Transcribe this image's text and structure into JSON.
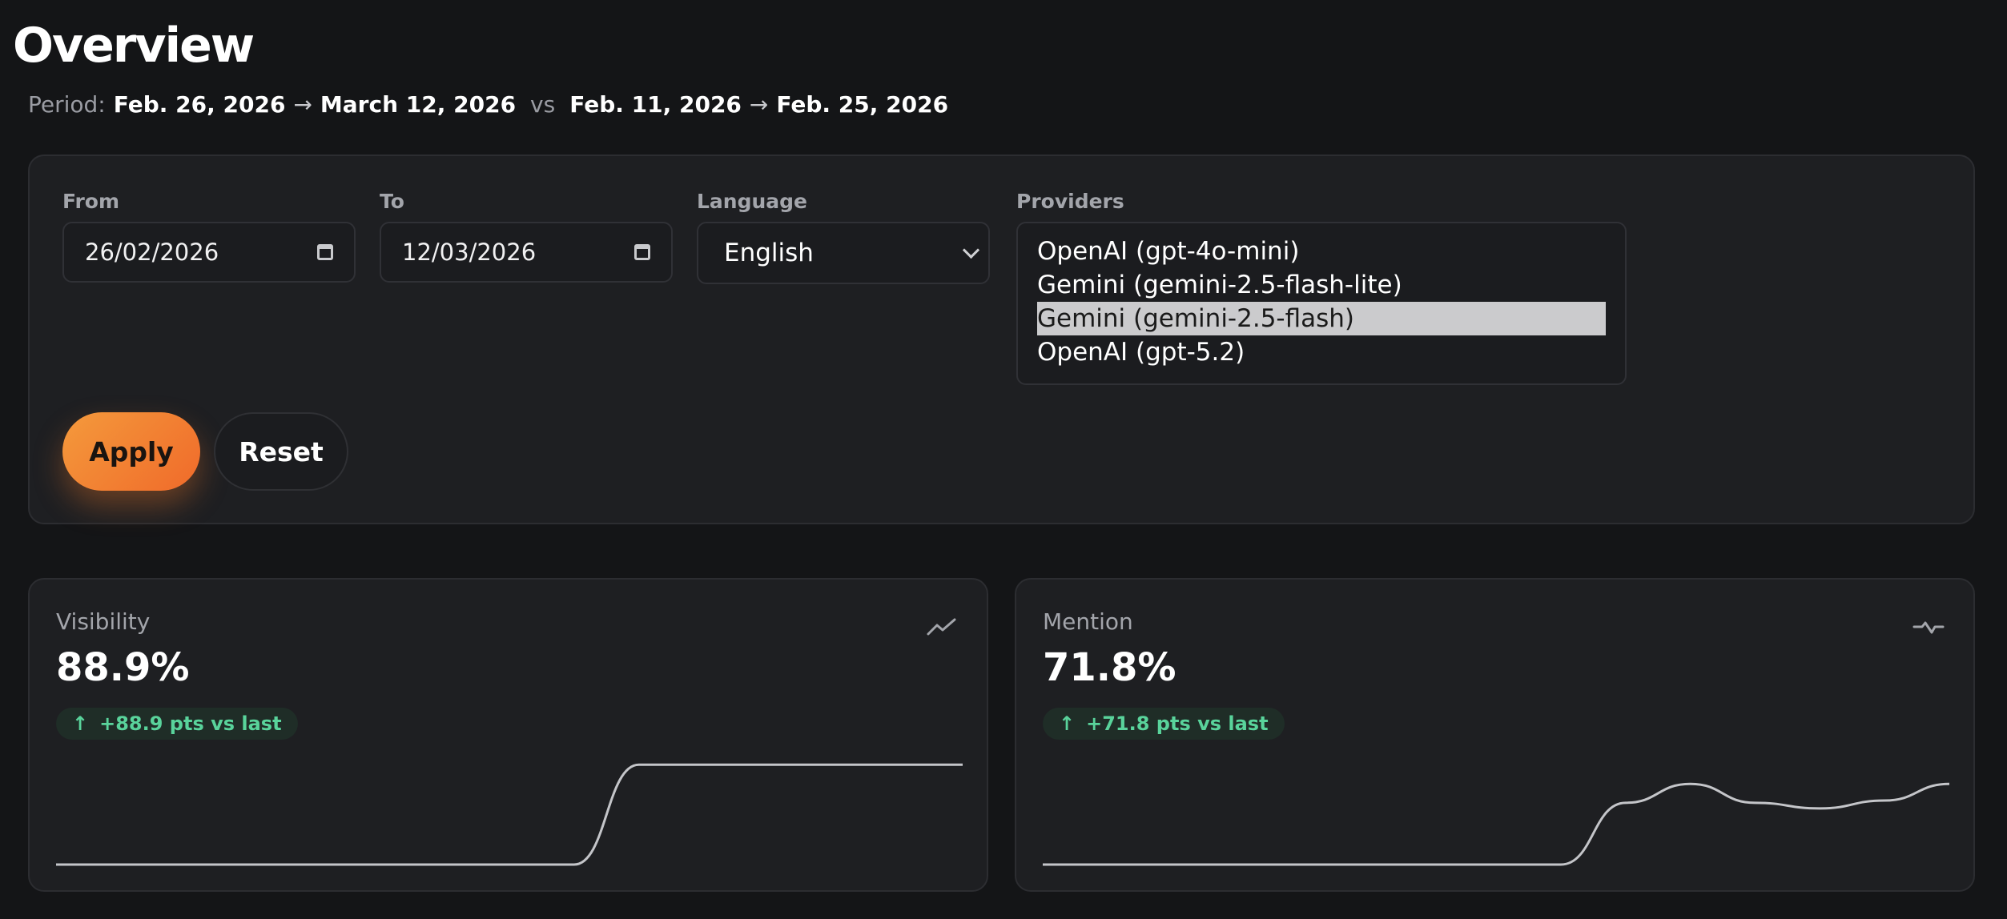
{
  "page": {
    "title": "Overview"
  },
  "period": {
    "label": "Period:",
    "current_start": "Feb. 26, 2026",
    "current_end": "March 12, 2026",
    "arrow": "→",
    "vs": "vs",
    "previous_start": "Feb. 11, 2026",
    "previous_end": "Feb. 25, 2026"
  },
  "filters": {
    "from_label": "From",
    "from_value": "26/02/2026",
    "to_label": "To",
    "to_value": "12/03/2026",
    "language_label": "Language",
    "language_value": "English",
    "providers_label": "Providers",
    "providers": [
      {
        "label": "OpenAI (gpt-4o-mini)",
        "selected": false
      },
      {
        "label": "Gemini (gemini-2.5-flash-lite)",
        "selected": false
      },
      {
        "label": "Gemini (gemini-2.5-flash)",
        "selected": true
      },
      {
        "label": "OpenAI (gpt-5.2)",
        "selected": false
      }
    ],
    "apply_label": "Apply",
    "reset_label": "Reset"
  },
  "metrics": [
    {
      "label": "Visibility",
      "value": "88.9%",
      "delta_arrow": "↑",
      "delta": "+88.9 pts vs last",
      "icon": "trending-up-icon",
      "series": [
        0,
        0,
        0,
        0,
        0,
        0,
        0,
        0,
        0,
        88.9,
        88.9,
        88.9,
        88.9,
        88.9,
        88.9
      ]
    },
    {
      "label": "Mention",
      "value": "71.8%",
      "delta_arrow": "↑",
      "delta": "+71.8 pts vs last",
      "icon": "activity-icon",
      "series": [
        0,
        0,
        0,
        0,
        0,
        0,
        0,
        0,
        0,
        55,
        71.8,
        55,
        50,
        57,
        71.8
      ]
    }
  ],
  "colors": {
    "accent": "#f2813a",
    "positive": "#59d39b",
    "background": "#141517",
    "card": "#1e1f22"
  }
}
